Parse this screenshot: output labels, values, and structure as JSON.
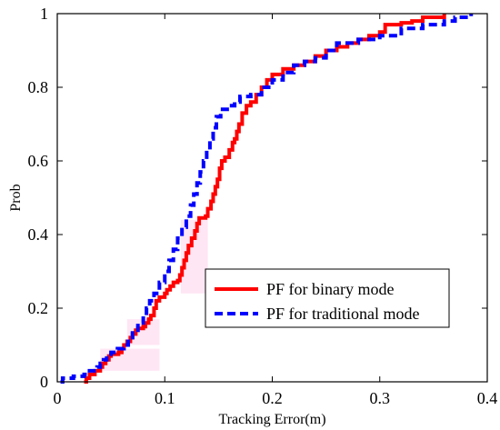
{
  "chart_data": {
    "type": "line",
    "title": "",
    "xlabel": "Tracking Error(m)",
    "ylabel": "Prob",
    "xlim": [
      0,
      0.4
    ],
    "ylim": [
      0,
      1
    ],
    "x_ticks": [
      "0",
      "0.1",
      "0.2",
      "0.3",
      "0.4"
    ],
    "y_ticks": [
      "0",
      "0.2",
      "0.4",
      "0.6",
      "0.8",
      "1"
    ],
    "x_tick_values": [
      0,
      0.1,
      0.2,
      0.3,
      0.4
    ],
    "y_tick_values": [
      0,
      0.2,
      0.4,
      0.6,
      0.8,
      1
    ],
    "grid": false,
    "legend_position": "lower-right",
    "series": [
      {
        "name": "PF for binary mode",
        "color": "#ff0000",
        "style": "solid",
        "points": [
          [
            0.025,
            0
          ],
          [
            0.027,
            0.01
          ],
          [
            0.03,
            0.02
          ],
          [
            0.035,
            0.03
          ],
          [
            0.04,
            0.04
          ],
          [
            0.042,
            0.05
          ],
          [
            0.045,
            0.06
          ],
          [
            0.048,
            0.07
          ],
          [
            0.05,
            0.075
          ],
          [
            0.057,
            0.08
          ],
          [
            0.06,
            0.09
          ],
          [
            0.062,
            0.1
          ],
          [
            0.065,
            0.11
          ],
          [
            0.068,
            0.12
          ],
          [
            0.07,
            0.13
          ],
          [
            0.073,
            0.14
          ],
          [
            0.075,
            0.145
          ],
          [
            0.08,
            0.15
          ],
          [
            0.082,
            0.16
          ],
          [
            0.085,
            0.17
          ],
          [
            0.087,
            0.18
          ],
          [
            0.09,
            0.2
          ],
          [
            0.092,
            0.22
          ],
          [
            0.095,
            0.23
          ],
          [
            0.1,
            0.24
          ],
          [
            0.102,
            0.25
          ],
          [
            0.105,
            0.26
          ],
          [
            0.108,
            0.27
          ],
          [
            0.112,
            0.275
          ],
          [
            0.114,
            0.29
          ],
          [
            0.116,
            0.31
          ],
          [
            0.118,
            0.33
          ],
          [
            0.12,
            0.35
          ],
          [
            0.122,
            0.37
          ],
          [
            0.125,
            0.39
          ],
          [
            0.128,
            0.41
          ],
          [
            0.13,
            0.43
          ],
          [
            0.132,
            0.445
          ],
          [
            0.138,
            0.45
          ],
          [
            0.14,
            0.47
          ],
          [
            0.143,
            0.49
          ],
          [
            0.145,
            0.51
          ],
          [
            0.147,
            0.53
          ],
          [
            0.149,
            0.55
          ],
          [
            0.151,
            0.58
          ],
          [
            0.153,
            0.6
          ],
          [
            0.156,
            0.61
          ],
          [
            0.16,
            0.63
          ],
          [
            0.163,
            0.65
          ],
          [
            0.165,
            0.66
          ],
          [
            0.167,
            0.68
          ],
          [
            0.169,
            0.7
          ],
          [
            0.172,
            0.73
          ],
          [
            0.176,
            0.75
          ],
          [
            0.18,
            0.76
          ],
          [
            0.185,
            0.78
          ],
          [
            0.19,
            0.8
          ],
          [
            0.195,
            0.82
          ],
          [
            0.2,
            0.835
          ],
          [
            0.21,
            0.85
          ],
          [
            0.22,
            0.86
          ],
          [
            0.23,
            0.87
          ],
          [
            0.24,
            0.885
          ],
          [
            0.25,
            0.9
          ],
          [
            0.26,
            0.91
          ],
          [
            0.27,
            0.92
          ],
          [
            0.28,
            0.93
          ],
          [
            0.29,
            0.94
          ],
          [
            0.3,
            0.95
          ],
          [
            0.305,
            0.97
          ],
          [
            0.32,
            0.975
          ],
          [
            0.33,
            0.98
          ],
          [
            0.34,
            0.99
          ],
          [
            0.36,
            1
          ]
        ]
      },
      {
        "name": "PF for traditional mode",
        "color": "#0000ff",
        "style": "dashed",
        "points": [
          [
            0.003,
            0
          ],
          [
            0.005,
            0.01
          ],
          [
            0.015,
            0.015
          ],
          [
            0.025,
            0.02
          ],
          [
            0.03,
            0.03
          ],
          [
            0.037,
            0.04
          ],
          [
            0.04,
            0.05
          ],
          [
            0.043,
            0.06
          ],
          [
            0.046,
            0.07
          ],
          [
            0.05,
            0.08
          ],
          [
            0.056,
            0.09
          ],
          [
            0.062,
            0.1
          ],
          [
            0.066,
            0.12
          ],
          [
            0.07,
            0.14
          ],
          [
            0.075,
            0.16
          ],
          [
            0.08,
            0.18
          ],
          [
            0.083,
            0.2
          ],
          [
            0.086,
            0.22
          ],
          [
            0.09,
            0.24
          ],
          [
            0.095,
            0.27
          ],
          [
            0.1,
            0.3
          ],
          [
            0.104,
            0.33
          ],
          [
            0.108,
            0.36
          ],
          [
            0.112,
            0.39
          ],
          [
            0.116,
            0.42
          ],
          [
            0.12,
            0.45
          ],
          [
            0.124,
            0.48
          ],
          [
            0.127,
            0.51
          ],
          [
            0.13,
            0.54
          ],
          [
            0.133,
            0.57
          ],
          [
            0.136,
            0.6
          ],
          [
            0.139,
            0.63
          ],
          [
            0.142,
            0.66
          ],
          [
            0.145,
            0.69
          ],
          [
            0.148,
            0.72
          ],
          [
            0.152,
            0.74
          ],
          [
            0.16,
            0.75
          ],
          [
            0.165,
            0.76
          ],
          [
            0.17,
            0.775
          ],
          [
            0.18,
            0.78
          ],
          [
            0.19,
            0.8
          ],
          [
            0.2,
            0.82
          ],
          [
            0.21,
            0.84
          ],
          [
            0.22,
            0.86
          ],
          [
            0.23,
            0.87
          ],
          [
            0.24,
            0.88
          ],
          [
            0.25,
            0.9
          ],
          [
            0.26,
            0.92
          ],
          [
            0.28,
            0.93
          ],
          [
            0.3,
            0.94
          ],
          [
            0.32,
            0.96
          ],
          [
            0.34,
            0.97
          ],
          [
            0.36,
            0.98
          ],
          [
            0.37,
            0.99
          ],
          [
            0.385,
            1
          ]
        ]
      }
    ]
  }
}
